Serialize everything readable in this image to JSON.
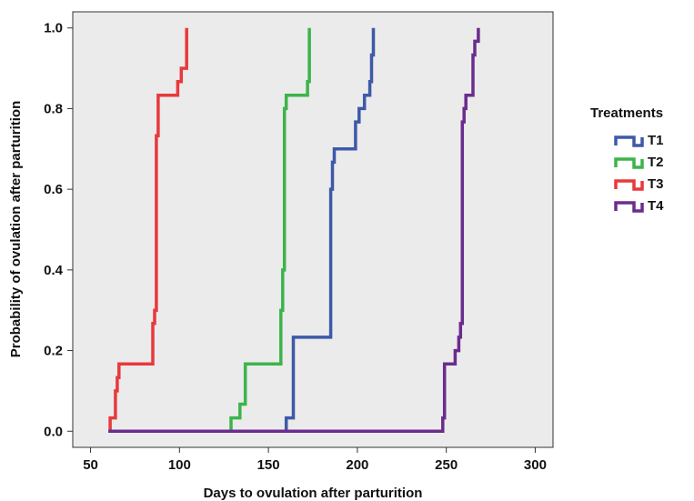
{
  "chart_data": {
    "type": "line",
    "step": true,
    "xlabel": "Days to ovulation after parturition",
    "ylabel": "Probability of ovulation after parturition",
    "xlim": [
      40,
      310
    ],
    "ylim": [
      -0.04,
      1.04
    ],
    "xticks": [
      50,
      100,
      150,
      200,
      250,
      300
    ],
    "xtick_labels": [
      "50",
      "100",
      "150",
      "200",
      "250",
      "300"
    ],
    "yticks": [
      0,
      0.2,
      0.4,
      0.6,
      0.8,
      1.0
    ],
    "ytick_labels": [
      "0.0",
      "0.2",
      "0.4",
      "0.6",
      "0.8",
      "1.0"
    ],
    "grid": false,
    "background": "#ebebeb",
    "legend": {
      "title": "Treatments",
      "position": "right"
    },
    "series": [
      {
        "name": "T1",
        "color": "#3e59a8",
        "points": [
          [
            160,
            0
          ],
          [
            160,
            0.033
          ],
          [
            164,
            0.033
          ],
          [
            164,
            0.233
          ],
          [
            185,
            0.233
          ],
          [
            185,
            0.6
          ],
          [
            186,
            0.6
          ],
          [
            186,
            0.667
          ],
          [
            187,
            0.667
          ],
          [
            187,
            0.7
          ],
          [
            199,
            0.7
          ],
          [
            199,
            0.767
          ],
          [
            201,
            0.767
          ],
          [
            201,
            0.8
          ],
          [
            204,
            0.8
          ],
          [
            204,
            0.833
          ],
          [
            207,
            0.833
          ],
          [
            207,
            0.867
          ],
          [
            208,
            0.867
          ],
          [
            208,
            0.933
          ],
          [
            209,
            0.933
          ],
          [
            209,
            1.0
          ]
        ]
      },
      {
        "name": "T2",
        "color": "#3cb44b",
        "points": [
          [
            129,
            0
          ],
          [
            129,
            0.033
          ],
          [
            134,
            0.033
          ],
          [
            134,
            0.067
          ],
          [
            137,
            0.067
          ],
          [
            137,
            0.167
          ],
          [
            157,
            0.167
          ],
          [
            157,
            0.3
          ],
          [
            158,
            0.3
          ],
          [
            158,
            0.4
          ],
          [
            159,
            0.4
          ],
          [
            159,
            0.8
          ],
          [
            160,
            0.8
          ],
          [
            160,
            0.833
          ],
          [
            172,
            0.833
          ],
          [
            172,
            0.867
          ],
          [
            173,
            0.867
          ],
          [
            173,
            1.0
          ]
        ]
      },
      {
        "name": "T3",
        "color": "#e8393c",
        "points": [
          [
            61,
            0
          ],
          [
            61,
            0.033
          ],
          [
            64,
            0.033
          ],
          [
            64,
            0.1
          ],
          [
            65,
            0.1
          ],
          [
            65,
            0.133
          ],
          [
            66,
            0.133
          ],
          [
            66,
            0.167
          ],
          [
            85,
            0.167
          ],
          [
            85,
            0.267
          ],
          [
            86,
            0.267
          ],
          [
            86,
            0.3
          ],
          [
            87,
            0.3
          ],
          [
            87,
            0.733
          ],
          [
            88,
            0.733
          ],
          [
            88,
            0.833
          ],
          [
            99,
            0.833
          ],
          [
            99,
            0.867
          ],
          [
            101,
            0.867
          ],
          [
            101,
            0.9
          ],
          [
            104,
            0.9
          ],
          [
            104,
            1.0
          ]
        ]
      },
      {
        "name": "T4",
        "color": "#6b2c8e",
        "points": [
          [
            60,
            0
          ],
          [
            248,
            0
          ],
          [
            248,
            0.033
          ],
          [
            249,
            0.033
          ],
          [
            249,
            0.167
          ],
          [
            255,
            0.167
          ],
          [
            255,
            0.2
          ],
          [
            257,
            0.2
          ],
          [
            257,
            0.233
          ],
          [
            258,
            0.233
          ],
          [
            258,
            0.267
          ],
          [
            259,
            0.267
          ],
          [
            259,
            0.767
          ],
          [
            260,
            0.767
          ],
          [
            260,
            0.8
          ],
          [
            261,
            0.8
          ],
          [
            261,
            0.833
          ],
          [
            265,
            0.833
          ],
          [
            265,
            0.933
          ],
          [
            266,
            0.933
          ],
          [
            266,
            0.967
          ],
          [
            268,
            0.967
          ],
          [
            268,
            1.0
          ]
        ]
      }
    ]
  }
}
